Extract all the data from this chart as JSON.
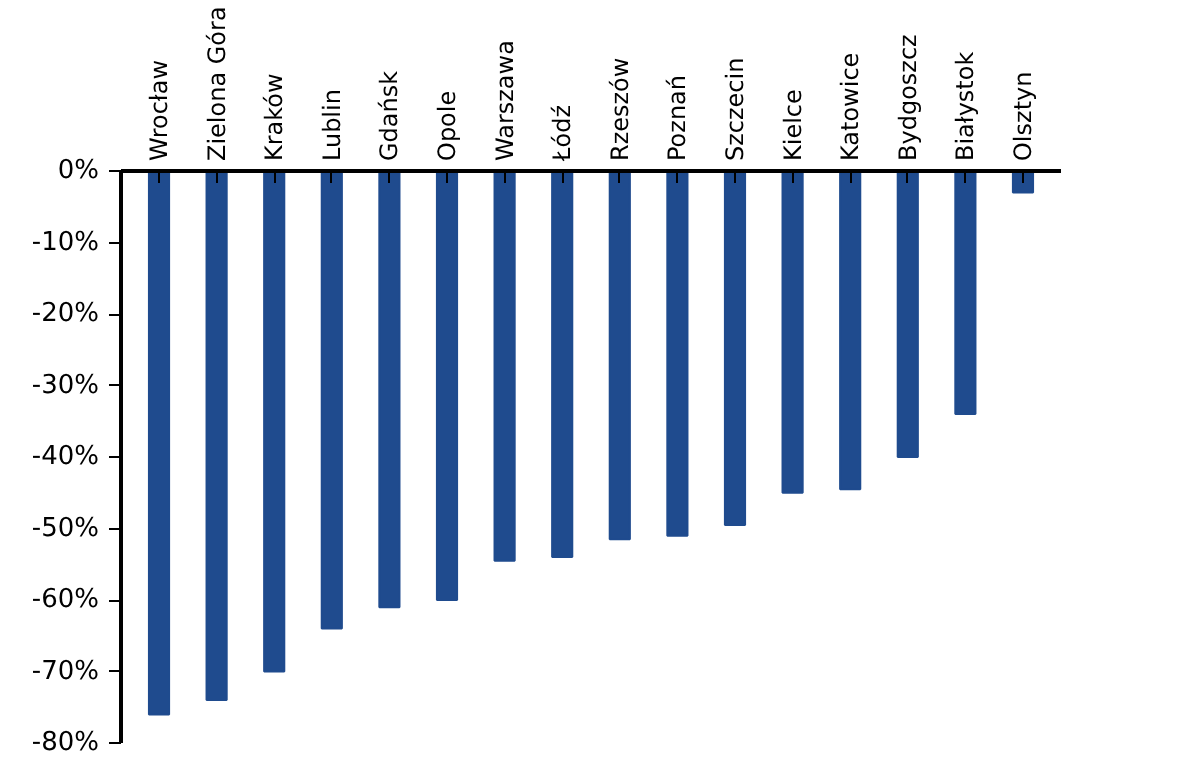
{
  "chart_data": {
    "type": "bar",
    "categories": [
      "Wrocław",
      "Zielona Góra",
      "Kraków",
      "Lublin",
      "Gdańsk",
      "Opole",
      "Warszawa",
      "Łódź",
      "Rzeszów",
      "Poznań",
      "Szczecin",
      "Kielce",
      "Katowice",
      "Bydgoszcz",
      "Białystok",
      "Olsztyn"
    ],
    "values": [
      -76,
      -74,
      -70,
      -64,
      -61,
      -60,
      -54.5,
      -54,
      -51.5,
      -51,
      -49.5,
      -45,
      -44.5,
      -40,
      -34,
      -3
    ],
    "color": "#1f4b8e",
    "ylim": [
      -80,
      0
    ],
    "yticks": [
      {
        "value": 0,
        "label": "0%"
      },
      {
        "value": -10,
        "label": "-10%"
      },
      {
        "value": -20,
        "label": "-20%"
      },
      {
        "value": -30,
        "label": "-30%"
      },
      {
        "value": -40,
        "label": "-40%"
      },
      {
        "value": -50,
        "label": "-50%"
      },
      {
        "value": -60,
        "label": "-60%"
      },
      {
        "value": -70,
        "label": "-70%"
      },
      {
        "value": -80,
        "label": "-80%"
      }
    ],
    "grid": false
  }
}
